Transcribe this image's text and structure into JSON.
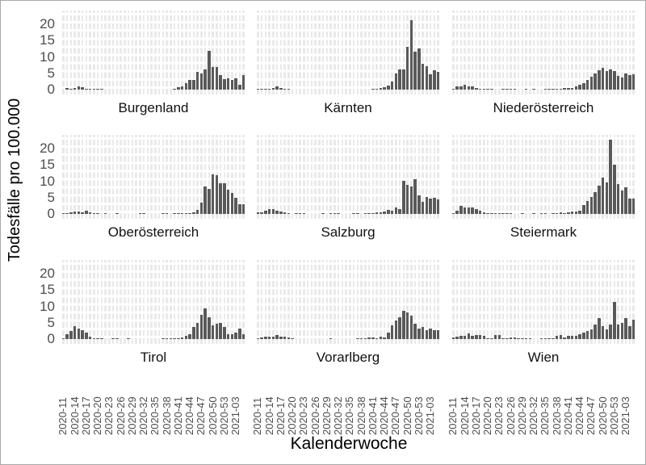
{
  "figure": {
    "x_axis_title": "Kalenderwoche",
    "y_axis_title": "Todesfälle pro 100.000"
  },
  "colors": {
    "bar": "#595959",
    "gridline": "#e9e9e9",
    "grid_gap": "#ffffff",
    "tick_text": "#4d4d4d",
    "title_text": "#000000",
    "panel_bg": "#ffffff",
    "figure_border": "#a8a8a8"
  },
  "chart_data": {
    "type": "bar",
    "layout": "3x3 faceted small multiples, facet name strip below each panel, shared y scale, x tick labels only on bottom row",
    "title": "",
    "xlabel": "Kalenderwoche",
    "ylabel": "Todesfälle pro 100.000",
    "ylim": [
      0,
      24
    ],
    "y_ticks": [
      0,
      5,
      10,
      15,
      20
    ],
    "y_tick_labels": [
      "0",
      "5",
      "10",
      "15",
      "20"
    ],
    "grid": true,
    "x": [
      "2020-11",
      "2020-12",
      "2020-13",
      "2020-14",
      "2020-15",
      "2020-16",
      "2020-17",
      "2020-18",
      "2020-19",
      "2020-20",
      "2020-21",
      "2020-22",
      "2020-23",
      "2020-24",
      "2020-25",
      "2020-26",
      "2020-27",
      "2020-28",
      "2020-29",
      "2020-30",
      "2020-31",
      "2020-32",
      "2020-33",
      "2020-34",
      "2020-35",
      "2020-36",
      "2020-37",
      "2020-38",
      "2020-39",
      "2020-40",
      "2020-41",
      "2020-42",
      "2020-43",
      "2020-44",
      "2020-45",
      "2020-46",
      "2020-47",
      "2020-48",
      "2020-49",
      "2020-50",
      "2020-51",
      "2020-52",
      "2020-53",
      "2021-01",
      "2021-02",
      "2021-03",
      "2021-04",
      "2021-05"
    ],
    "x_tick_every": 3,
    "x_tick_labels": [
      "2020-11",
      "2020-14",
      "2020-17",
      "2020-20",
      "2020-23",
      "2020-26",
      "2020-29",
      "2020-32",
      "2020-35",
      "2020-38",
      "2020-41",
      "2020-44",
      "2020-47",
      "2020-50",
      "2020-53",
      "2021-03"
    ],
    "facets": [
      {
        "name": "Burgenland",
        "values": [
          0,
          0.4,
          0.2,
          0.4,
          1.0,
          0.8,
          0.3,
          0.3,
          0.3,
          0.1,
          0.1,
          0,
          0,
          0,
          0,
          0,
          0,
          0,
          0,
          0,
          0,
          0,
          0,
          0,
          0,
          0,
          0,
          0,
          0,
          0.3,
          0.7,
          1.0,
          1.9,
          2.9,
          2.9,
          5.4,
          5.0,
          6.3,
          12.0,
          7.0,
          7.0,
          4.4,
          3.3,
          3.4,
          3.0,
          3.4,
          1.5,
          4.5
        ]
      },
      {
        "name": "Kärnten",
        "values": [
          0.2,
          0.2,
          0.3,
          0.3,
          0.5,
          1.0,
          0.4,
          0.3,
          0.1,
          0,
          0,
          0,
          0,
          0,
          0,
          0,
          0,
          0,
          0,
          0,
          0,
          0,
          0,
          0,
          0,
          0,
          0,
          0,
          0,
          0,
          0.2,
          0.3,
          0.4,
          0.7,
          1.2,
          2.5,
          5.0,
          6.3,
          6.3,
          13.0,
          21.4,
          11.6,
          12.5,
          7.9,
          7.3,
          4.8,
          6.0,
          5.4
        ]
      },
      {
        "name": "Niederösterreich",
        "values": [
          0.3,
          1.0,
          1.0,
          1.6,
          1.0,
          1.1,
          0.6,
          0.3,
          0.2,
          0.2,
          0.1,
          0,
          0,
          0.1,
          0.1,
          0.1,
          0.1,
          0,
          0,
          0.1,
          0,
          0.1,
          0,
          0,
          0.1,
          0.1,
          0.1,
          0.2,
          0.3,
          0.4,
          0.5,
          0.6,
          1.0,
          1.5,
          2.1,
          3.0,
          4.0,
          5.0,
          6.0,
          6.6,
          5.8,
          6.2,
          5.6,
          4.1,
          3.6,
          5.0,
          4.5,
          4.8
        ]
      },
      {
        "name": "Oberösterreich",
        "values": [
          0.1,
          0.2,
          0.5,
          0.8,
          0.7,
          0.6,
          0.9,
          0.4,
          0.2,
          0.1,
          0,
          0.1,
          0,
          0,
          0.1,
          0,
          0,
          0,
          0,
          0,
          0.1,
          0.1,
          0,
          0,
          0,
          0,
          0.2,
          0.1,
          0,
          0.1,
          0.1,
          0.2,
          0.3,
          0.3,
          0.4,
          1.2,
          3.5,
          8.5,
          7.6,
          12.1,
          12.0,
          9.4,
          9.4,
          7.5,
          6.5,
          5.0,
          3.0,
          3.0
        ]
      },
      {
        "name": "Salzburg",
        "values": [
          0.4,
          0.4,
          1.0,
          1.4,
          1.4,
          0.9,
          0.7,
          0.5,
          0.2,
          0,
          0.2,
          0.2,
          0.1,
          0,
          0,
          0,
          0,
          0.1,
          0,
          0.2,
          0.2,
          0.1,
          0,
          0,
          0,
          0.1,
          0.1,
          0,
          0.2,
          0.3,
          0.3,
          0.4,
          0.6,
          0.7,
          1.3,
          1.0,
          2.0,
          1.6,
          10.1,
          9.0,
          8.4,
          10.7,
          5.6,
          3.6,
          5.1,
          4.6,
          4.9,
          4.5
        ]
      },
      {
        "name": "Steiermark",
        "values": [
          0.3,
          1.0,
          2.4,
          1.9,
          2.0,
          1.9,
          1.4,
          0.9,
          0.4,
          0.3,
          0.3,
          0.2,
          0.1,
          0.2,
          0.1,
          0.1,
          0,
          0,
          0.1,
          0,
          0,
          0.1,
          0,
          0.1,
          0.1,
          0,
          0.1,
          0.2,
          0.4,
          0.3,
          0.6,
          0.8,
          0.8,
          1.1,
          2.6,
          4.0,
          5.2,
          6.6,
          8.6,
          11.2,
          9.6,
          22.8,
          15.2,
          9.2,
          7.2,
          8.2,
          4.6,
          4.6
        ]
      },
      {
        "name": "Tirol",
        "values": [
          0.3,
          1.4,
          2.5,
          4.0,
          3.2,
          2.6,
          2.1,
          0.8,
          0.3,
          0.2,
          0.1,
          0,
          0,
          0.1,
          0.1,
          0,
          0,
          0.1,
          0,
          0,
          0,
          0,
          0,
          0,
          0,
          0,
          0.2,
          0.1,
          0.1,
          0.2,
          0.3,
          0.5,
          1.0,
          1.6,
          3.6,
          5.0,
          7.4,
          9.4,
          6.6,
          4.1,
          4.6,
          5.0,
          3.6,
          1.6,
          1.5,
          2.1,
          3.1,
          1.6
        ]
      },
      {
        "name": "Vorarlberg",
        "values": [
          0.3,
          0.5,
          0.8,
          0.8,
          0.8,
          1.3,
          0.8,
          0.8,
          0.4,
          0.1,
          0,
          0,
          0,
          0,
          0,
          0,
          0,
          0,
          0,
          0.3,
          0,
          0,
          0,
          0,
          0,
          0,
          0.1,
          0.1,
          0.3,
          0.4,
          0.5,
          0.3,
          0.8,
          0.5,
          2.0,
          4.1,
          5.6,
          6.6,
          8.6,
          8.1,
          7.1,
          4.6,
          3.1,
          3.6,
          2.6,
          3.1,
          2.6,
          2.6
        ]
      },
      {
        "name": "Wien",
        "values": [
          0.4,
          0.7,
          0.9,
          1.1,
          1.7,
          1.1,
          1.2,
          1.2,
          0.9,
          0.3,
          0.2,
          1.3,
          1.2,
          0.2,
          0.1,
          0.6,
          0.6,
          0.3,
          0.2,
          0.1,
          0.1,
          0,
          0,
          0.2,
          0.2,
          0.1,
          0.3,
          1.0,
          1.2,
          0.5,
          1.0,
          1.0,
          1.0,
          1.5,
          2.0,
          2.5,
          3.0,
          4.5,
          6.5,
          4.0,
          3.0,
          4.5,
          11.4,
          4.5,
          5.0,
          6.5,
          4.0,
          6.0
        ]
      }
    ]
  }
}
